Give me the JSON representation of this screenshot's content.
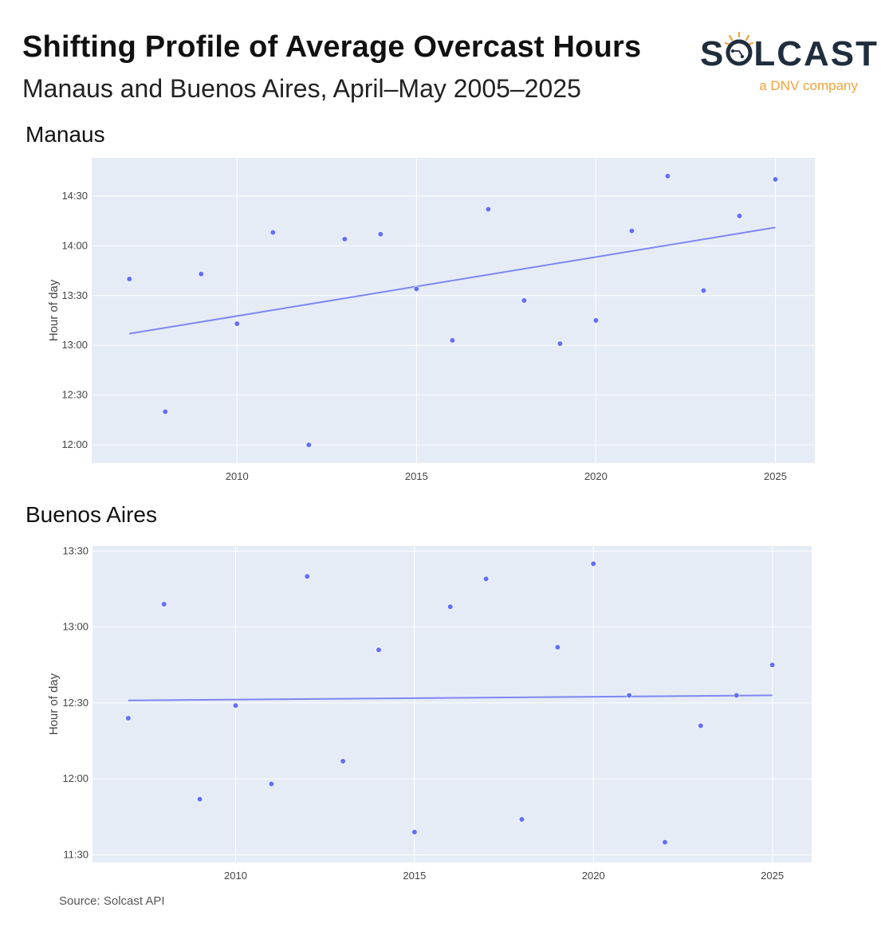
{
  "header": {
    "title": "Shifting Profile of Average Overcast Hours",
    "subtitle": "Manaus and Buenos Aires, April–May 2005–2025"
  },
  "logo": {
    "word_before": "S",
    "word_after": "LCAST",
    "tagline": "a DNV company",
    "colors": {
      "word": "#1f2d3d",
      "accent": "#f2a33a"
    },
    "icon": "sun-circuit-icon"
  },
  "footer": {
    "source": "Source: Solcast API"
  },
  "colors": {
    "plot_bg": "#e5ecf6",
    "grid": "#ffffff",
    "marker": "#636efa",
    "trend": "#7f86f2"
  },
  "chart_data": [
    {
      "type": "scatter",
      "title": "Manaus",
      "ylabel": "Hour of day",
      "xlabel": "",
      "x_ticks": [
        2010,
        2015,
        2020,
        2025
      ],
      "xlim": [
        2005.95,
        2026.1
      ],
      "y_ticks": [
        "12:00",
        "12:30",
        "13:00",
        "13:30",
        "14:00",
        "14:30"
      ],
      "ylim": [
        "11:49",
        "14:53"
      ],
      "grid": true,
      "series": [
        {
          "marker": "points",
          "x": [
            2007,
            2008,
            2009,
            2010,
            2011,
            2012,
            2013,
            2014,
            2015,
            2016,
            2017,
            2018,
            2019,
            2020,
            2021,
            2022,
            2023,
            2024,
            2025
          ],
          "y": [
            "13:40",
            "12:20",
            "13:43",
            "13:13",
            "14:08",
            "12:00",
            "14:04",
            "14:07",
            "13:34",
            "13:03",
            "14:22",
            "13:27",
            "13:01",
            "13:15",
            "14:09",
            "14:42",
            "13:33",
            "14:18",
            "14:40"
          ]
        },
        {
          "marker": "trendline",
          "x": [
            2007,
            2025
          ],
          "y": [
            "13:07",
            "14:11"
          ]
        }
      ]
    },
    {
      "type": "scatter",
      "title": "Buenos Aires",
      "ylabel": "Hour of day",
      "xlabel": "",
      "x_ticks": [
        2010,
        2015,
        2020,
        2025
      ],
      "xlim": [
        2006.0,
        2026.1
      ],
      "y_ticks": [
        "11:30",
        "12:00",
        "12:30",
        "13:00",
        "13:30"
      ],
      "ylim": [
        "11:27",
        "13:32"
      ],
      "grid": true,
      "series": [
        {
          "marker": "points",
          "x": [
            2007,
            2008,
            2009,
            2010,
            2011,
            2012,
            2013,
            2014,
            2015,
            2016,
            2017,
            2018,
            2019,
            2020,
            2021,
            2022,
            2023,
            2024,
            2025
          ],
          "y": [
            "12:24",
            "13:09",
            "11:52",
            "12:29",
            "11:58",
            "13:20",
            "12:07",
            "12:51",
            "11:39",
            "13:08",
            "13:19",
            "11:44",
            "12:52",
            "13:25",
            "12:33",
            "11:35",
            "12:21",
            "12:33",
            "12:45"
          ]
        },
        {
          "marker": "trendline",
          "x": [
            2007,
            2025
          ],
          "y": [
            "12:31",
            "12:33"
          ]
        }
      ]
    }
  ]
}
